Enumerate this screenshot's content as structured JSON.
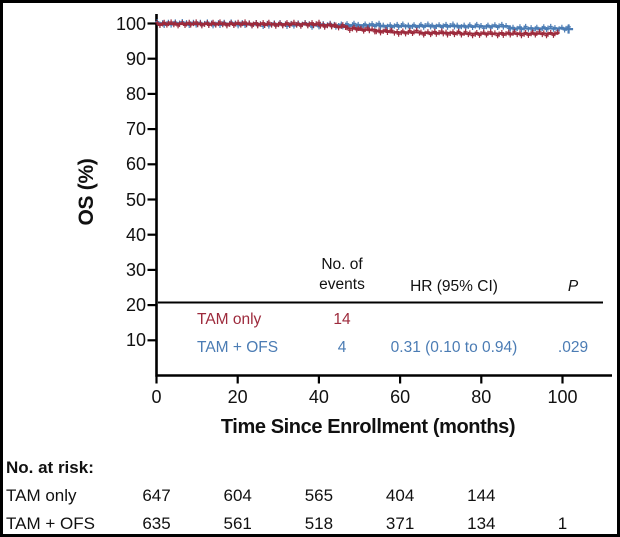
{
  "chart_data": {
    "type": "line",
    "subtype": "kaplan-meier-step",
    "title": "",
    "xlabel": "Time Since Enrollment (months)",
    "ylabel": "OS (%)",
    "xlim": [
      0,
      112
    ],
    "ylim": [
      0,
      102
    ],
    "xticks": [
      0,
      20,
      40,
      60,
      80,
      100
    ],
    "yticks": [
      10,
      20,
      30,
      40,
      50,
      60,
      70,
      80,
      90,
      100
    ],
    "grid": false,
    "censor_marks": "dense plus-sign censor ticks along both curves",
    "series": [
      {
        "name": "TAM + OFS",
        "color": "#4B7CB4",
        "end_month": 101.5,
        "end_censor_mark": true,
        "steps": [
          [
            0,
            100
          ],
          [
            10,
            99.9
          ],
          [
            22,
            99.7
          ],
          [
            38,
            99.5
          ],
          [
            55,
            99.3
          ],
          [
            75,
            99.2
          ],
          [
            87,
            98.6
          ],
          [
            101.5,
            98.4
          ]
        ]
      },
      {
        "name": "TAM only",
        "color": "#9D2A3C",
        "end_month": 99,
        "end_censor_mark": false,
        "steps": [
          [
            0,
            99.9
          ],
          [
            25,
            99.8
          ],
          [
            40,
            99.5
          ],
          [
            44,
            99.1
          ],
          [
            47,
            98.6
          ],
          [
            50,
            98.2
          ],
          [
            54,
            97.8
          ],
          [
            58,
            97.5
          ],
          [
            65,
            97.3
          ],
          [
            75,
            97.1
          ],
          [
            99,
            97.0
          ]
        ]
      }
    ]
  },
  "events_table": {
    "events_header": "No. of\nevents",
    "hr_header": "HR (95% CI)",
    "p_header": "P",
    "rows": [
      {
        "label": "TAM only",
        "events": "14",
        "hr": "",
        "p": "",
        "color": "#9D2A3C"
      },
      {
        "label": "TAM + OFS",
        "events": "4",
        "hr": "0.31 (0.10 to 0.94)",
        "p": ".029",
        "color": "#4B7CB4"
      }
    ]
  },
  "at_risk": {
    "title": "No. at risk:",
    "months": [
      0,
      20,
      40,
      60,
      80,
      100
    ],
    "rows": [
      {
        "label": "TAM only",
        "counts": [
          "647",
          "604",
          "565",
          "404",
          "144",
          ""
        ]
      },
      {
        "label": "TAM + OFS",
        "counts": [
          "635",
          "561",
          "518",
          "371",
          "134",
          "1"
        ]
      }
    ]
  },
  "colors": {
    "axis": "#000000",
    "text": "#111111",
    "background": "#ffffff"
  }
}
